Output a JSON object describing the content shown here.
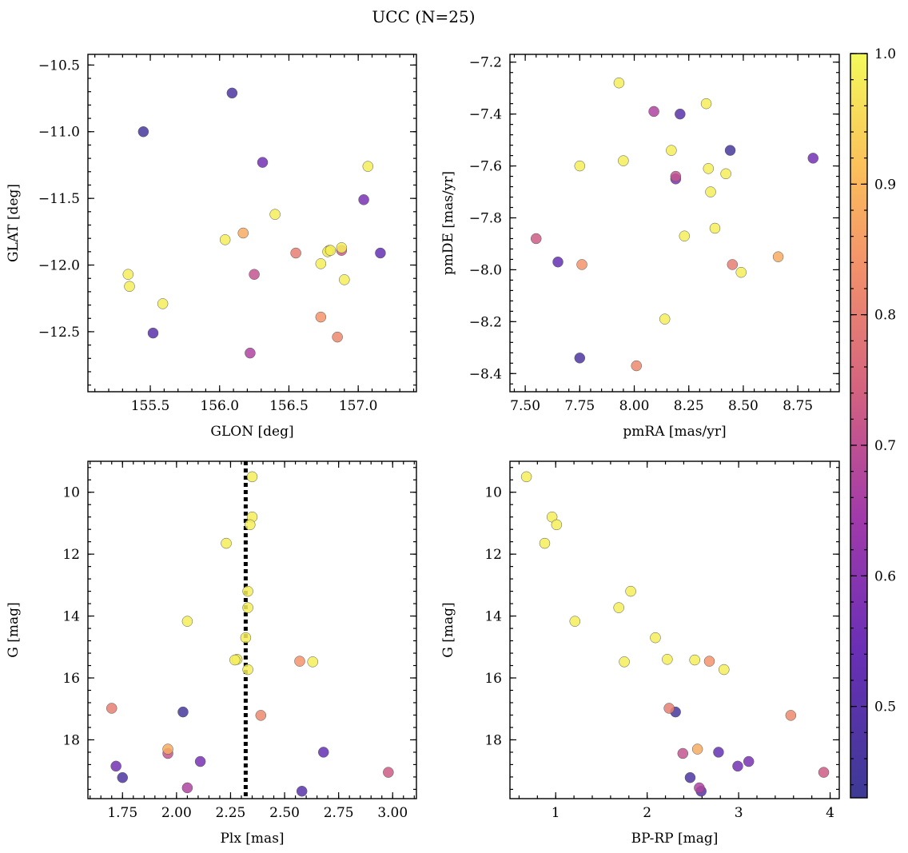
{
  "figure": {
    "title": "UCC (N=25)"
  },
  "colorbar": {
    "range": [
      0.43,
      1.0
    ],
    "colormap": "plasma",
    "ticks": [
      "0.5",
      "0.6",
      "0.7",
      "0.8",
      "0.9",
      "1.0"
    ]
  },
  "chart_data": [
    {
      "type": "scatter",
      "panel": "top-left",
      "xlabel": "GLON [deg]",
      "ylabel": "GLAT [deg]",
      "xlim": [
        155.05,
        157.42
      ],
      "ylim": [
        -12.95,
        -10.42
      ],
      "xticks": [
        "155.5",
        "156.0",
        "156.5",
        "157.0"
      ],
      "yticks": [
        "−10.5",
        "−11.0",
        "−11.5",
        "−12.0",
        "−12.5"
      ]
    },
    {
      "type": "scatter",
      "panel": "top-right",
      "xlabel": "pmRA [mas/yr]",
      "ylabel": "pmDE [mas/yr]",
      "xlim": [
        7.43,
        8.94
      ],
      "ylim": [
        -8.47,
        -7.17
      ],
      "xticks": [
        "7.50",
        "7.75",
        "8.00",
        "8.25",
        "8.50",
        "8.75"
      ],
      "yticks": [
        "−7.2",
        "−7.4",
        "−7.6",
        "−7.8",
        "−8.0",
        "−8.2",
        "−8.4"
      ]
    },
    {
      "type": "scatter",
      "panel": "bottom-left",
      "xlabel": "Plx [mas]",
      "ylabel": "G [mag]",
      "xlim": [
        1.59,
        3.11
      ],
      "ylim": [
        19.9,
        9.0
      ],
      "inverted_y": true,
      "vline": 2.32,
      "xticks": [
        "1.75",
        "2.00",
        "2.25",
        "2.50",
        "2.75",
        "3.00"
      ],
      "yticks": [
        "10",
        "12",
        "14",
        "16",
        "18"
      ]
    },
    {
      "type": "scatter",
      "panel": "bottom-right",
      "xlabel": "BP-RP [mag]",
      "ylabel": "G [mag]",
      "xlim": [
        0.5,
        4.1
      ],
      "ylim": [
        19.9,
        9.0
      ],
      "inverted_y": true,
      "xticks": [
        "1",
        "2",
        "3",
        "4"
      ],
      "yticks": [
        "10",
        "12",
        "14",
        "16",
        "18"
      ]
    }
  ],
  "stars": [
    {
      "glon": 155.45,
      "glat": -11.0,
      "pmra": 8.44,
      "pmde": -7.54,
      "plx": 2.03,
      "g": 17.1,
      "bprp": 2.31,
      "prob": 0.45
    },
    {
      "glon": 156.09,
      "glat": -10.71,
      "pmra": 7.75,
      "pmde": -8.34,
      "plx": 1.75,
      "g": 19.22,
      "bprp": 2.47,
      "prob": 0.47
    },
    {
      "glon": 155.52,
      "glat": -12.51,
      "pmra": 8.21,
      "pmde": -7.4,
      "plx": 2.58,
      "g": 19.66,
      "bprp": 2.59,
      "prob": 0.5
    },
    {
      "glon": 157.16,
      "glat": -11.91,
      "pmra": 7.65,
      "pmde": -7.97,
      "plx": 2.68,
      "g": 18.4,
      "bprp": 2.78,
      "prob": 0.53
    },
    {
      "glon": 156.31,
      "glat": -11.23,
      "pmra": 8.82,
      "pmde": -7.57,
      "plx": 1.72,
      "g": 18.85,
      "bprp": 2.99,
      "prob": 0.56
    },
    {
      "glon": 157.04,
      "glat": -11.51,
      "pmra": 8.19,
      "pmde": -7.65,
      "plx": 2.11,
      "g": 18.7,
      "bprp": 3.11,
      "prob": 0.57
    },
    {
      "glon": 156.22,
      "glat": -12.66,
      "pmra": 8.09,
      "pmde": -7.39,
      "plx": 2.05,
      "g": 19.55,
      "bprp": 2.57,
      "prob": 0.67
    },
    {
      "glon": 156.25,
      "glat": -12.07,
      "pmra": 8.19,
      "pmde": -7.64,
      "plx": 1.96,
      "g": 18.44,
      "bprp": 2.39,
      "prob": 0.71
    },
    {
      "glon": 156.88,
      "glat": -11.89,
      "pmra": 7.55,
      "pmde": -7.88,
      "plx": 2.98,
      "g": 19.05,
      "bprp": 3.93,
      "prob": 0.73
    },
    {
      "glon": 156.55,
      "glat": -11.91,
      "pmra": 8.45,
      "pmde": -7.98,
      "plx": 1.7,
      "g": 16.98,
      "bprp": 2.24,
      "prob": 0.8
    },
    {
      "glon": 156.85,
      "glat": -12.54,
      "pmra": 8.01,
      "pmde": -8.37,
      "plx": 2.39,
      "g": 17.21,
      "bprp": 3.57,
      "prob": 0.82
    },
    {
      "glon": 156.73,
      "glat": -12.39,
      "pmra": 7.76,
      "pmde": -7.98,
      "plx": 2.57,
      "g": 15.46,
      "bprp": 2.68,
      "prob": 0.84
    },
    {
      "glon": 156.17,
      "glat": -11.76,
      "pmra": 8.66,
      "pmde": -7.95,
      "plx": 1.96,
      "g": 18.3,
      "bprp": 2.55,
      "prob": 0.88
    },
    {
      "glon": 156.04,
      "glat": -11.81,
      "pmra": 8.37,
      "pmde": -7.84,
      "plx": 2.35,
      "g": 9.5,
      "bprp": 0.68,
      "prob": 0.98
    },
    {
      "glon": 156.4,
      "glat": -11.62,
      "pmra": 7.93,
      "pmde": -7.28,
      "plx": 2.35,
      "g": 10.8,
      "bprp": 0.96,
      "prob": 0.98
    },
    {
      "glon": 155.34,
      "glat": -12.07,
      "pmra": 7.95,
      "pmde": -7.58,
      "plx": 2.34,
      "g": 11.05,
      "bprp": 1.01,
      "prob": 0.98
    },
    {
      "glon": 155.35,
      "glat": -12.16,
      "pmra": 8.17,
      "pmde": -7.54,
      "plx": 2.23,
      "g": 11.65,
      "bprp": 0.88,
      "prob": 0.98
    },
    {
      "glon": 155.59,
      "glat": -12.29,
      "pmra": 7.75,
      "pmde": -7.6,
      "plx": 2.33,
      "g": 13.2,
      "bprp": 1.82,
      "prob": 0.98
    },
    {
      "glon": 156.73,
      "glat": -11.99,
      "pmra": 8.33,
      "pmde": -7.36,
      "plx": 2.33,
      "g": 13.73,
      "bprp": 1.69,
      "prob": 0.98
    },
    {
      "glon": 156.79,
      "glat": -11.89,
      "pmra": 8.34,
      "pmde": -7.61,
      "plx": 2.05,
      "g": 14.17,
      "bprp": 1.21,
      "prob": 0.98
    },
    {
      "glon": 156.78,
      "glat": -11.9,
      "pmra": 8.35,
      "pmde": -7.7,
      "plx": 2.32,
      "g": 14.7,
      "bprp": 2.09,
      "prob": 0.98
    },
    {
      "glon": 156.88,
      "glat": -11.87,
      "pmra": 8.42,
      "pmde": -7.63,
      "plx": 2.28,
      "g": 15.4,
      "bprp": 2.22,
      "prob": 0.98
    },
    {
      "glon": 156.9,
      "glat": -12.11,
      "pmra": 8.49,
      "pmde": -8.01,
      "plx": 2.27,
      "g": 15.42,
      "bprp": 2.52,
      "prob": 0.98
    },
    {
      "glon": 157.07,
      "glat": -11.26,
      "pmra": 8.14,
      "pmde": -8.19,
      "plx": 2.63,
      "g": 15.48,
      "bprp": 1.75,
      "prob": 0.98
    },
    {
      "glon": 156.8,
      "glat": -11.89,
      "pmra": 8.23,
      "pmde": -7.87,
      "plx": 2.33,
      "g": 15.73,
      "bprp": 2.84,
      "prob": 0.98
    }
  ]
}
